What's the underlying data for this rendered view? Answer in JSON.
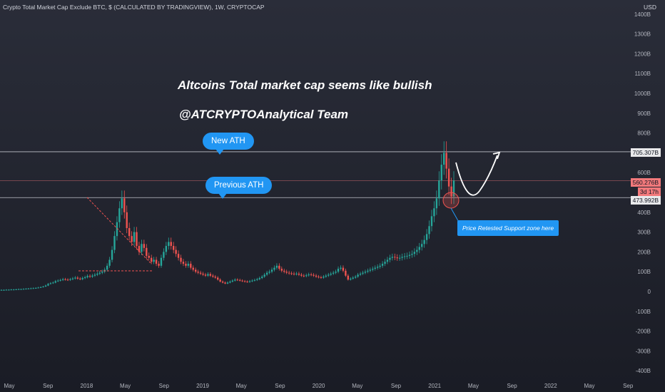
{
  "header": {
    "title": "Crypto Total Market Cap Exclude BTC, $ (CALCULATED BY TRADINGVIEW), 1W, CRYPTOCAP",
    "currency": "USD"
  },
  "annotations": {
    "line1": "Altcoins Total market cap seems like bullish",
    "line2": "@ATCRYPTOAnalytical Team",
    "new_ath": "New ATH",
    "previous_ath": "Previous ATH",
    "support_note": "Price Retested Support zone here"
  },
  "price_tags": {
    "ath": "705.307B",
    "last": "560.276B",
    "countdown": "3d 17h",
    "previous_ath": "473.992B"
  },
  "colors": {
    "up": "#26a69a",
    "down": "#ef5350",
    "accent": "#2196f3",
    "level_line": "#d1d4dc",
    "last_line": "#f2797b"
  },
  "chart_data": {
    "type": "candlestick",
    "y_unit": "USD billions",
    "ylim": [
      -400,
      1400
    ],
    "y_ticks": [
      1400,
      1300,
      1200,
      1100,
      1000,
      900,
      800,
      600,
      400,
      300,
      200,
      100,
      0,
      -100,
      -200,
      -300,
      -400
    ],
    "y_tick_labels": [
      "1400B",
      "1300B",
      "1200B",
      "1100B",
      "1000B",
      "900B",
      "800B",
      "600B",
      "400B",
      "300B",
      "200B",
      "100B",
      "0",
      "-100B",
      "-200B",
      "-300B",
      "-400B"
    ],
    "x_tick_labels": [
      "May",
      "Sep",
      "2018",
      "May",
      "Sep",
      "2019",
      "May",
      "Sep",
      "2020",
      "May",
      "Sep",
      "2021",
      "May",
      "Sep",
      "2022",
      "May",
      "Sep"
    ],
    "levels": [
      {
        "label": "New ATH",
        "value": 705.307
      },
      {
        "label": "Previous ATH",
        "value": 473.992
      },
      {
        "label": "Last",
        "value": 560.276
      }
    ],
    "series_close": [
      8,
      8,
      9,
      9,
      10,
      10,
      11,
      12,
      12,
      13,
      14,
      15,
      16,
      17,
      18,
      20,
      22,
      25,
      30,
      38,
      42,
      45,
      52,
      55,
      58,
      62,
      60,
      58,
      62,
      66,
      70,
      65,
      62,
      68,
      72,
      78,
      75,
      80,
      85,
      90,
      95,
      100,
      110,
      130,
      160,
      210,
      280,
      350,
      420,
      470,
      400,
      320,
      280,
      250,
      300,
      230,
      200,
      240,
      220,
      180,
      170,
      150,
      160,
      140,
      130,
      170,
      200,
      230,
      250,
      230,
      210,
      190,
      170,
      150,
      140,
      130,
      140,
      120,
      110,
      100,
      95,
      90,
      85,
      80,
      88,
      80,
      75,
      70,
      60,
      50,
      45,
      40,
      45,
      50,
      55,
      60,
      58,
      55,
      52,
      50,
      48,
      52,
      55,
      58,
      62,
      68,
      75,
      85,
      95,
      100,
      110,
      120,
      130,
      115,
      105,
      100,
      95,
      92,
      90,
      88,
      90,
      85,
      80,
      78,
      82,
      86,
      84,
      80,
      75,
      72,
      70,
      75,
      80,
      85,
      90,
      95,
      100,
      115,
      120,
      105,
      80,
      60,
      65,
      70,
      75,
      85,
      90,
      95,
      100,
      105,
      110,
      115,
      120,
      125,
      130,
      140,
      150,
      160,
      170,
      175,
      172,
      168,
      170,
      175,
      178,
      180,
      185,
      190,
      200,
      210,
      225,
      240,
      260,
      290,
      330,
      380,
      420,
      470,
      560,
      640,
      700,
      620,
      530,
      480,
      560
    ]
  }
}
